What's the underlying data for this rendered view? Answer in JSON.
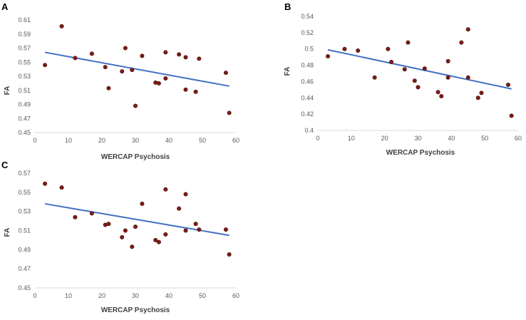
{
  "chart_data": [
    {
      "panel": "A",
      "type": "scatter",
      "xlabel": "WERCAP Psychosis",
      "ylabel": "FA",
      "xlim": [
        0,
        60
      ],
      "ylim": [
        0.45,
        0.61
      ],
      "xticks": [
        "0",
        "10",
        "20",
        "30",
        "40",
        "50",
        "60"
      ],
      "yticks": [
        "0.45",
        "0.47",
        "0.49",
        "0.51",
        "0.53",
        "0.55",
        "0.57",
        "0.59",
        "0.61"
      ],
      "trendline": {
        "x": [
          3,
          58
        ],
        "y": [
          0.564,
          0.516
        ]
      },
      "points": [
        [
          3,
          0.546
        ],
        [
          8,
          0.601
        ],
        [
          12,
          0.556
        ],
        [
          17,
          0.562
        ],
        [
          21,
          0.543
        ],
        [
          22,
          0.513
        ],
        [
          26,
          0.537
        ],
        [
          27,
          0.57
        ],
        [
          29,
          0.539
        ],
        [
          30,
          0.488
        ],
        [
          32,
          0.559
        ],
        [
          36,
          0.521
        ],
        [
          37,
          0.52
        ],
        [
          39,
          0.564
        ],
        [
          39,
          0.527
        ],
        [
          43,
          0.561
        ],
        [
          45,
          0.557
        ],
        [
          45,
          0.511
        ],
        [
          48,
          0.508
        ],
        [
          49,
          0.555
        ],
        [
          57,
          0.535
        ],
        [
          58,
          0.478
        ]
      ]
    },
    {
      "panel": "B",
      "type": "scatter",
      "xlabel": "WERCAP Psychosis",
      "ylabel": "FA",
      "xlim": [
        0,
        60
      ],
      "ylim": [
        0.4,
        0.54
      ],
      "xticks": [
        "0",
        "10",
        "20",
        "30",
        "40",
        "50",
        "60"
      ],
      "yticks": [
        "0.4",
        "0.42",
        "0.44",
        "0.46",
        "0.48",
        "0.5",
        "0.52",
        "0.54"
      ],
      "trendline": {
        "x": [
          3,
          58
        ],
        "y": [
          0.499,
          0.451
        ]
      },
      "points": [
        [
          3,
          0.491
        ],
        [
          8,
          0.5
        ],
        [
          12,
          0.498
        ],
        [
          17,
          0.465
        ],
        [
          21,
          0.5
        ],
        [
          22,
          0.484
        ],
        [
          26,
          0.475
        ],
        [
          27,
          0.508
        ],
        [
          29,
          0.461
        ],
        [
          30,
          0.453
        ],
        [
          32,
          0.476
        ],
        [
          36,
          0.447
        ],
        [
          37,
          0.442
        ],
        [
          39,
          0.485
        ],
        [
          39,
          0.465
        ],
        [
          43,
          0.508
        ],
        [
          45,
          0.524
        ],
        [
          45,
          0.465
        ],
        [
          48,
          0.44
        ],
        [
          49,
          0.446
        ],
        [
          57,
          0.456
        ],
        [
          58,
          0.418
        ]
      ]
    },
    {
      "panel": "C",
      "type": "scatter",
      "xlabel": "WERCAP Psychosis",
      "ylabel": "FA",
      "xlim": [
        0,
        60
      ],
      "ylim": [
        0.45,
        0.57
      ],
      "xticks": [
        "0",
        "10",
        "20",
        "30",
        "40",
        "50",
        "60"
      ],
      "yticks": [
        "0.45",
        "0.47",
        "0.49",
        "0.51",
        "0.53",
        "0.55",
        "0.57"
      ],
      "trendline": {
        "x": [
          3,
          58
        ],
        "y": [
          0.538,
          0.505
        ]
      },
      "points": [
        [
          3,
          0.559
        ],
        [
          8,
          0.555
        ],
        [
          12,
          0.524
        ],
        [
          17,
          0.528
        ],
        [
          21,
          0.516
        ],
        [
          22,
          0.517
        ],
        [
          26,
          0.503
        ],
        [
          27,
          0.51
        ],
        [
          29,
          0.493
        ],
        [
          30,
          0.514
        ],
        [
          32,
          0.538
        ],
        [
          36,
          0.5
        ],
        [
          37,
          0.498
        ],
        [
          39,
          0.553
        ],
        [
          39,
          0.506
        ],
        [
          43,
          0.533
        ],
        [
          45,
          0.548
        ],
        [
          45,
          0.51
        ],
        [
          48,
          0.517
        ],
        [
          49,
          0.511
        ],
        [
          57,
          0.511
        ],
        [
          58,
          0.485
        ]
      ]
    }
  ]
}
